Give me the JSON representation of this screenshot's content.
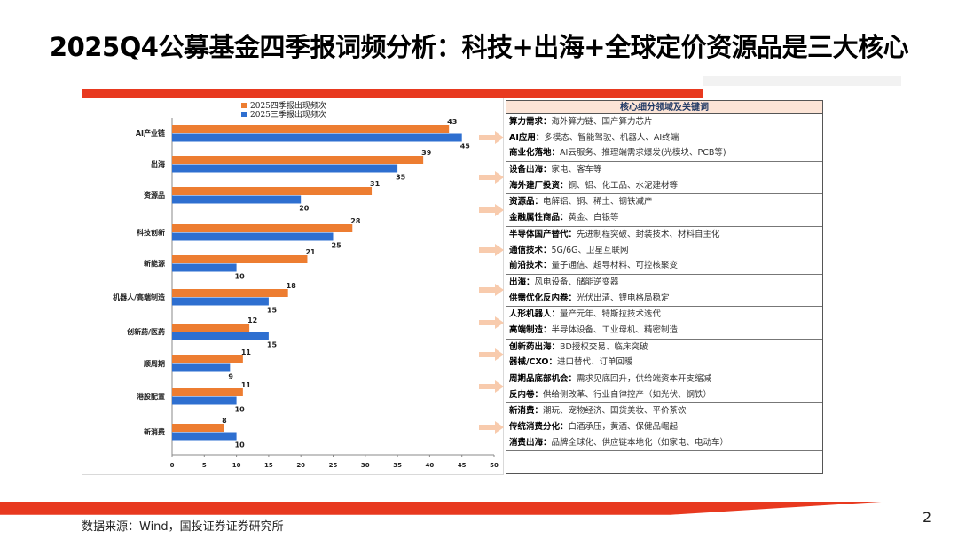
{
  "title": "2025Q4公募基金四季报词频分析：科技+出海+全球定价资源品是三大核心",
  "source": "数据来源：Wind，国投证券证券研究所",
  "page_number": "2",
  "colors": {
    "accent": "#e8391f",
    "q4": "#ed7d31",
    "q3": "#2e6fd0"
  },
  "chart_data": {
    "type": "bar",
    "orientation": "horizontal",
    "categories": [
      "AI产业链",
      "出海",
      "资源品",
      "科技创新",
      "新能源",
      "机器人/高端制造",
      "创新药/医药",
      "顺周期",
      "港股配置",
      "新消费"
    ],
    "series": [
      {
        "name": "2025四季报出现频次",
        "values": [
          43,
          39,
          31,
          28,
          21,
          18,
          12,
          11,
          11,
          8
        ]
      },
      {
        "name": "2025三季报出现频次",
        "values": [
          45,
          35,
          20,
          25,
          10,
          15,
          15,
          9,
          10,
          10
        ]
      }
    ],
    "xlim": [
      0,
      50
    ],
    "xticks": [
      0,
      5,
      10,
      15,
      20,
      25,
      30,
      35,
      40,
      45,
      50
    ],
    "legend": "top",
    "grid": false
  },
  "table": {
    "header": "核心细分领域及关键词",
    "groups": [
      [
        [
          "算力需求：",
          "海外算力链、国产算力芯片"
        ],
        [
          "AI应用：",
          "多模态、智能驾驶、机器人、AI终端"
        ],
        [
          "商业化落地：",
          "AI云服务、推理端需求爆发(光模块、PCB等)"
        ]
      ],
      [
        [
          "设备出海：",
          "家电、客车等"
        ],
        [
          "海外建厂投资：",
          "铜、铝、化工品、水泥建材等"
        ]
      ],
      [
        [
          "资源品：",
          "电解铝、铜、稀土、钢铁减产"
        ],
        [
          "金融属性商品：",
          "黄金、白银等"
        ]
      ],
      [
        [
          "半导体国产替代：",
          "先进制程突破、封装技术、材料自主化"
        ],
        [
          "通信技术：",
          "5G/6G、卫星互联网"
        ],
        [
          "前沿技术：",
          "量子通信、超导材料、可控核聚变"
        ]
      ],
      [
        [
          "出海：",
          "风电设备、储能逆变器"
        ],
        [
          "供需优化反内卷：",
          "光伏出清、锂电格局稳定"
        ]
      ],
      [
        [
          "人形机器人：",
          "量产元年、特斯拉技术迭代"
        ],
        [
          "高端制造：",
          "半导体设备、工业母机、精密制造"
        ]
      ],
      [
        [
          "创新药出海：",
          "BD授权交易、临床突破"
        ],
        [
          "器械/CXO：",
          "进口替代、订单回暖"
        ]
      ],
      [
        [
          "周期品底部机会：",
          "需求见底回升，供给端资本开支缩减"
        ],
        [
          "反内卷：",
          "供给侧改革、行业自律控产（如光伏、钢铁）"
        ]
      ],
      [
        [
          "新消费：",
          "潮玩、宠物经济、国货美妆、平价茶饮"
        ],
        [
          "传统消费分化：",
          "白酒承压，黄酒、保健品崛起"
        ],
        [
          "消费出海：",
          "品牌全球化、供应链本地化（如家电、电动车）"
        ]
      ]
    ]
  }
}
